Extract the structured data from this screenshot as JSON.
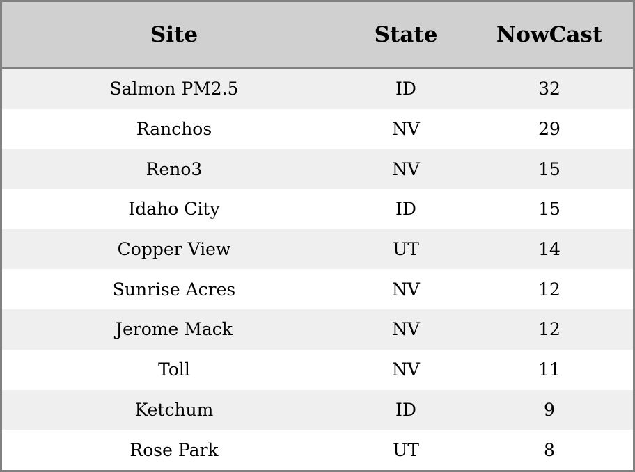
{
  "table": {
    "headers": [
      "Site",
      "State",
      "NowCast"
    ],
    "rows": [
      [
        "Salmon PM2.5",
        "ID",
        "32"
      ],
      [
        "Ranchos",
        "NV",
        "29"
      ],
      [
        "Reno3",
        "NV",
        "15"
      ],
      [
        "Idaho City",
        "ID",
        "15"
      ],
      [
        "Copper View",
        "UT",
        "14"
      ],
      [
        "Sunrise Acres",
        "NV",
        "12"
      ],
      [
        "Jerome Mack",
        "NV",
        "12"
      ],
      [
        "Toll",
        "NV",
        "11"
      ],
      [
        "Ketchum",
        "ID",
        "9"
      ],
      [
        "Rose Park",
        "UT",
        "8"
      ]
    ]
  }
}
